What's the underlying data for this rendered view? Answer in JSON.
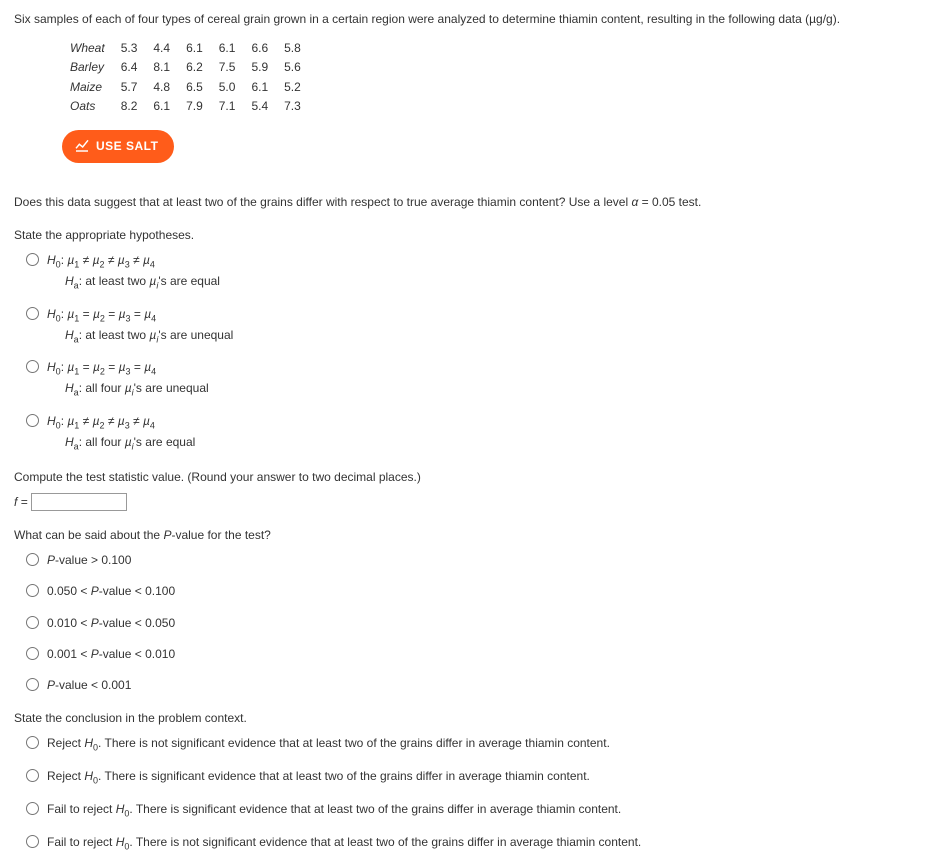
{
  "intro": "Six samples of each of four types of cereal grain grown in a certain region were analyzed to determine thiamin content, resulting in the following data (µg/g).",
  "table": {
    "rows": [
      {
        "label": "Wheat",
        "vals": [
          "5.3",
          "4.4",
          "6.1",
          "6.1",
          "6.6",
          "5.8"
        ]
      },
      {
        "label": "Barley",
        "vals": [
          "6.4",
          "8.1",
          "6.2",
          "7.5",
          "5.9",
          "5.6"
        ]
      },
      {
        "label": "Maize",
        "vals": [
          "5.7",
          "4.8",
          "6.5",
          "5.0",
          "6.1",
          "5.2"
        ]
      },
      {
        "label": "Oats",
        "vals": [
          "8.2",
          "6.1",
          "7.9",
          "7.1",
          "5.4",
          "7.3"
        ]
      }
    ]
  },
  "salt_label": "USE SALT",
  "question": "Does this data suggest that at least two of the grains differ with respect to true average thiamin content? Use a level α = 0.05 test.",
  "hyp_header": "State the appropriate hypotheses.",
  "hyp_options": [
    {
      "h0": "H₀: µ₁ ≠ µ₂ ≠ µ₃ ≠ µ₄",
      "ha": "Hₐ: at least two µᵢ's are equal"
    },
    {
      "h0": "H₀: µ₁ = µ₂ = µ₃ = µ₄",
      "ha": "Hₐ: at least two µᵢ's are unequal"
    },
    {
      "h0": "H₀: µ₁ = µ₂ = µ₃ = µ₄",
      "ha": "Hₐ: all four µᵢ's are unequal"
    },
    {
      "h0": "H₀: µ₁ ≠ µ₂ ≠ µ₃ ≠ µ₄",
      "ha": "Hₐ: all four µᵢ's are equal"
    }
  ],
  "compute_text": "Compute the test statistic value. (Round your answer to two decimal places.)",
  "f_label": "f =",
  "pvalue_header": "What can be said about the P-value for the test?",
  "pvalue_options": [
    "P-value > 0.100",
    "0.050 < P-value < 0.100",
    "0.010 < P-value < 0.050",
    "0.001 < P-value < 0.010",
    "P-value < 0.001"
  ],
  "concl_header": "State the conclusion in the problem context.",
  "concl_options": [
    "Reject H₀. There is not significant evidence that at least two of the grains differ in average thiamin content.",
    "Reject H₀. There is significant evidence that at least two of the grains differ in average thiamin content.",
    "Fail to reject H₀. There is significant evidence that at least two of the grains differ in average thiamin content.",
    "Fail to reject H₀. There is not significant evidence that at least two of the grains differ in average thiamin content."
  ],
  "colors": {
    "accent": "#ff5c1a"
  }
}
